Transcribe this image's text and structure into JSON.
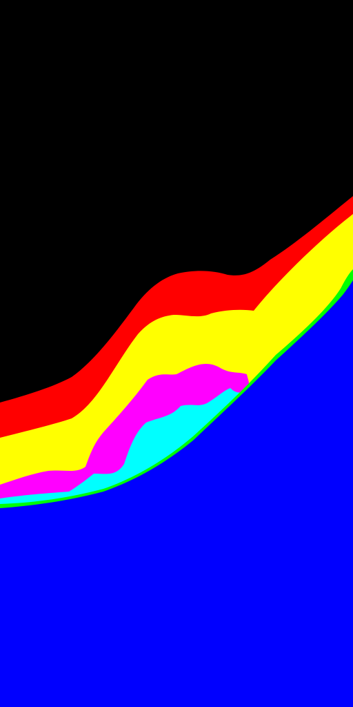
{
  "image": {
    "background_color": "#000000"
  },
  "bands": [
    {
      "name": "red",
      "color": "#FF0000"
    },
    {
      "name": "yellow",
      "color": "#FFFF00"
    },
    {
      "name": "magenta",
      "color": "#FF00FF"
    },
    {
      "name": "cyan",
      "color": "#00FFFF"
    },
    {
      "name": "green",
      "color": "#00FF00"
    },
    {
      "name": "blue",
      "color": "#0000FF"
    }
  ]
}
